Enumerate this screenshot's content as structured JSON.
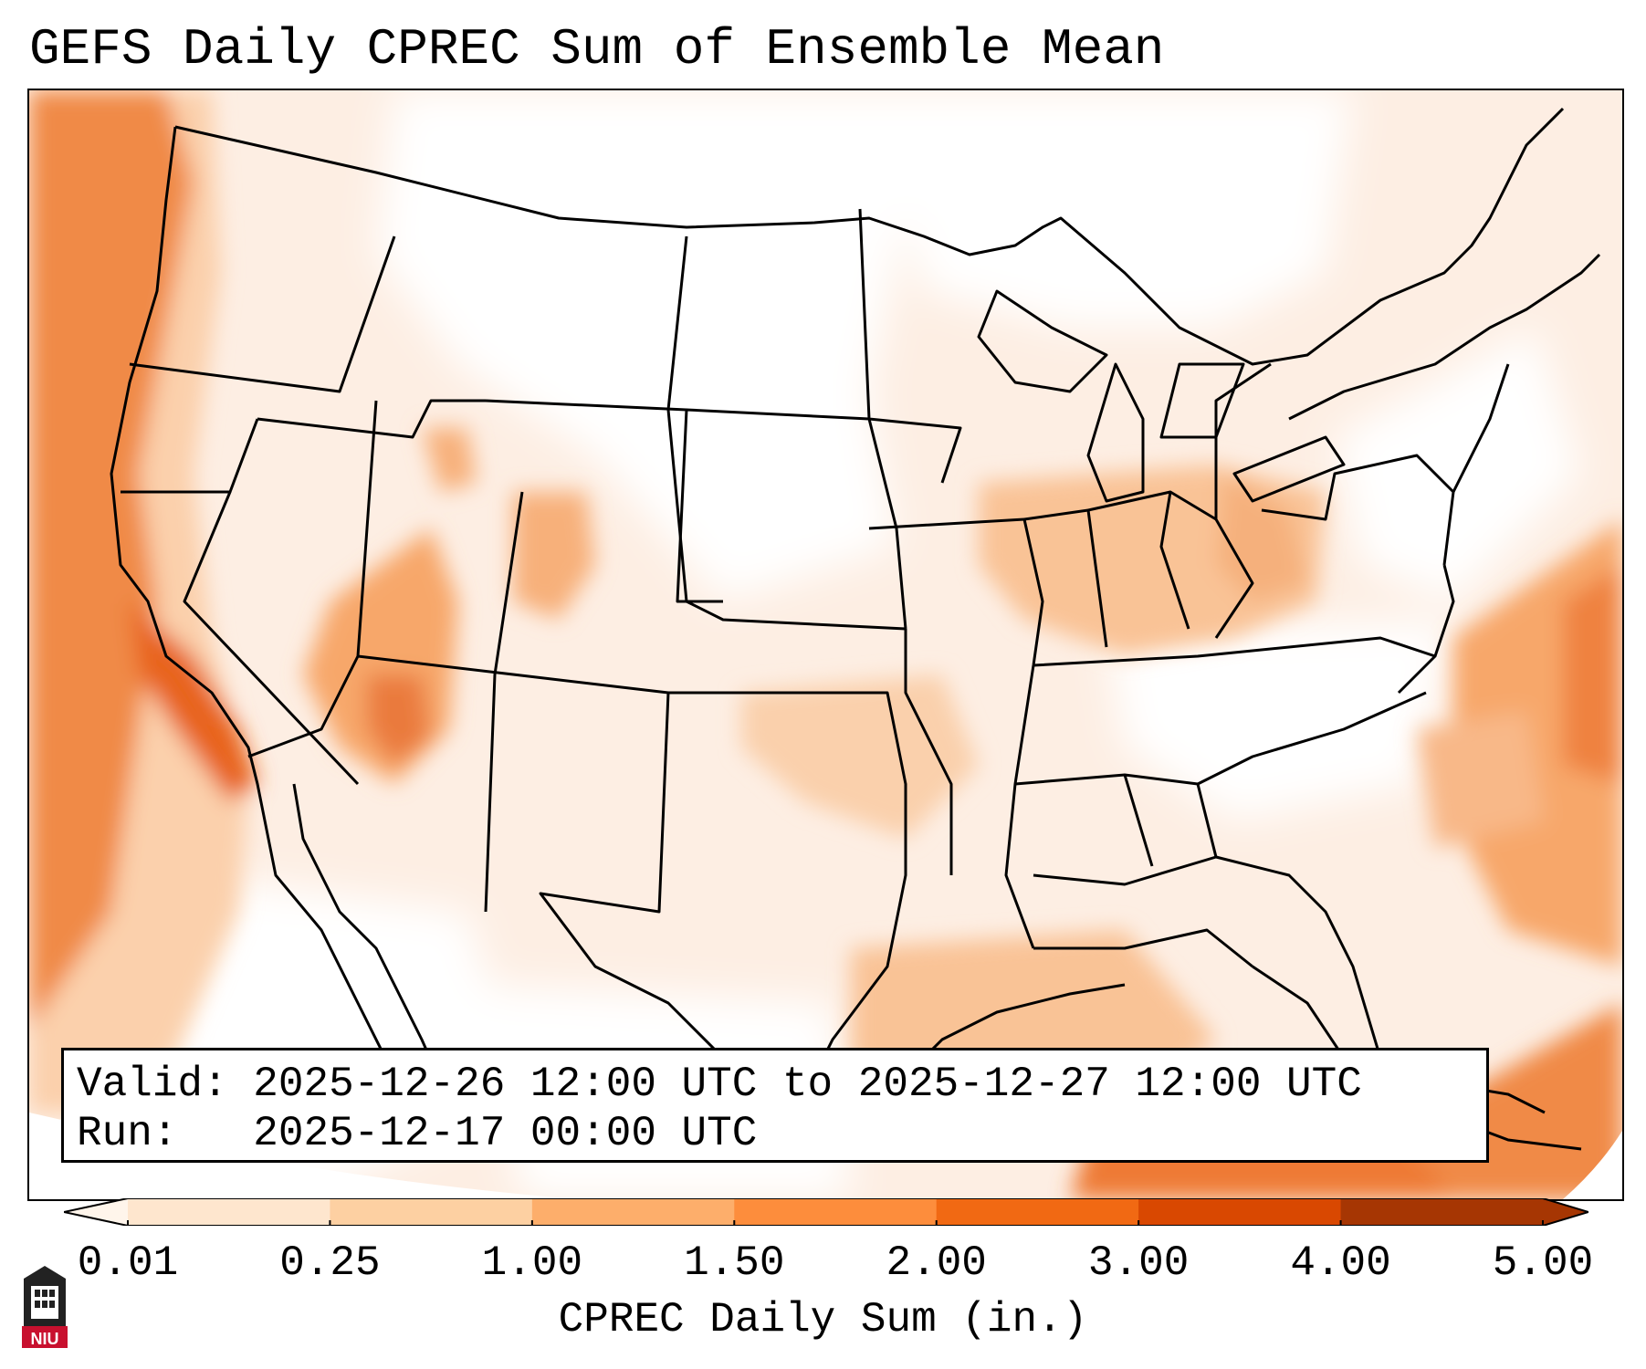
{
  "title": "GEFS Daily CPREC Sum of Ensemble Mean",
  "info": {
    "valid_label": "Valid:",
    "valid_value": "2025-12-26 12:00 UTC to 2025-12-27 12:00 UTC",
    "run_label": "Run:",
    "run_value": "2025-12-17 00:00 UTC"
  },
  "colorbar": {
    "label": "CPREC Daily Sum (in.)",
    "ticks": [
      "0.01",
      "0.25",
      "1.00",
      "1.50",
      "2.00",
      "3.00",
      "4.00",
      "5.00"
    ],
    "colors": [
      "#fff5eb",
      "#fee6ce",
      "#fdd0a2",
      "#fdae6b",
      "#fd8d3c",
      "#f16913",
      "#d94801",
      "#a63603"
    ],
    "extend": "both"
  },
  "map": {
    "region": "CONUS",
    "projection": "Lambert Conformal",
    "colormap": "Oranges"
  },
  "logo": {
    "text": "NIU",
    "colors": {
      "red": "#c8102e",
      "dark": "#222222"
    }
  }
}
